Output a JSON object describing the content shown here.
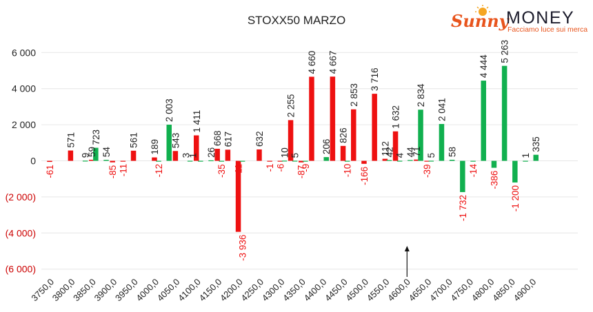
{
  "chart_data": {
    "type": "bar",
    "title": "STOXX50 MARZO",
    "categories": [
      "3750,0",
      "3775,0",
      "3800,0",
      "3825,0",
      "3850,0",
      "3875,0",
      "3900,0",
      "3925,0",
      "3950,0",
      "3975,0",
      "4000,0",
      "4025,0",
      "4050,0",
      "4075,0",
      "4100,0",
      "4125,0",
      "4150,0",
      "4175,0",
      "4200,0",
      "4225,0",
      "4250,0",
      "4275,0",
      "4300,0",
      "4325,0",
      "4350,0",
      "4375,0",
      "4400,0",
      "4425,0",
      "4450,0",
      "4475,0",
      "4500,0",
      "4525,0",
      "4550,0",
      "4575,0",
      "4600,0",
      "4625,0",
      "4650,0",
      "4675,0",
      "4700,0",
      "4725,0",
      "4750,0",
      "4775,0",
      "4800,0",
      "4825,0",
      "4850,0",
      "4875,0",
      "4900,0"
    ],
    "xtick_labels": [
      "3750,0",
      "3800,0",
      "3850,0",
      "3900,0",
      "3950,0",
      "4000,0",
      "4050,0",
      "4100,0",
      "4150,0",
      "4200,0",
      "4250,0",
      "4300,0",
      "4350,0",
      "4400,0",
      "4450,0",
      "4500,0",
      "4550,0",
      "4600,0",
      "4650,0",
      "4700,0",
      "4750,0",
      "4800,0",
      "4850,0",
      "4900,0"
    ],
    "series": [
      {
        "color": "#ee1111",
        "values": [
          -61,
          0,
          571,
          0,
          59,
          0,
          -85,
          -11,
          561,
          0,
          189,
          0,
          543,
          0,
          1411,
          0,
          668,
          617,
          -3936,
          0,
          632,
          -1,
          -6,
          2255,
          -87,
          4660,
          0,
          4667,
          826,
          2853,
          -166,
          3716,
          112,
          1632,
          0,
          71,
          -39,
          0,
          0,
          0,
          0,
          0,
          0,
          0,
          0,
          0,
          0
        ]
      },
      {
        "color": "#11b04f",
        "values": [
          0,
          0,
          0,
          9,
          723,
          54,
          0,
          0,
          0,
          0,
          -12,
          2003,
          0,
          3,
          1,
          26,
          -35,
          0,
          -11,
          0,
          0,
          0,
          10,
          5,
          -9,
          0,
          206,
          0,
          -10,
          0,
          0,
          0,
          42,
          4,
          44,
          2834,
          5,
          2041,
          58,
          -1732,
          -14,
          4444,
          -386,
          5263,
          -1200,
          1,
          335
        ]
      }
    ],
    "labels": [
      {
        "cat": 0,
        "off": -0.2,
        "v": -61,
        "t": "-61"
      },
      {
        "cat": 2,
        "off": -0.2,
        "v": 571,
        "t": "571"
      },
      {
        "cat": 3,
        "off": 0.2,
        "v": 9,
        "t": "9"
      },
      {
        "cat": 4,
        "off": -0.2,
        "v": 59,
        "t": "59"
      },
      {
        "cat": 4,
        "off": 0.2,
        "v": 723,
        "t": "723"
      },
      {
        "cat": 5,
        "off": 0.2,
        "v": 54,
        "t": "54"
      },
      {
        "cat": 6,
        "off": -0.2,
        "v": -85,
        "t": "-85"
      },
      {
        "cat": 7,
        "off": -0.2,
        "v": -11,
        "t": "-11"
      },
      {
        "cat": 8,
        "off": -0.2,
        "v": 561,
        "t": "561"
      },
      {
        "cat": 10,
        "off": -0.2,
        "v": 189,
        "t": "189"
      },
      {
        "cat": 10,
        "off": 0.2,
        "v": -12,
        "t": "-12"
      },
      {
        "cat": 11,
        "off": 0.2,
        "v": 2003,
        "t": "2 003"
      },
      {
        "cat": 12,
        "off": -0.2,
        "v": 543,
        "t": "543"
      },
      {
        "cat": 13,
        "off": -0.2,
        "v": 3,
        "t": "3"
      },
      {
        "cat": 14,
        "off": -0.2,
        "v": 1411,
        "t": "1 411"
      },
      {
        "cat": 14,
        "off": -0.55,
        "v": 1,
        "t": "1"
      },
      {
        "cat": 15,
        "off": 0.2,
        "v": 26,
        "t": "26"
      },
      {
        "cat": 16,
        "off": -0.2,
        "v": 668,
        "t": "668"
      },
      {
        "cat": 16,
        "off": 0.2,
        "v": -35,
        "t": "-35"
      },
      {
        "cat": 17,
        "off": -0.2,
        "v": 617,
        "t": "617"
      },
      {
        "cat": 18,
        "off": -0.2,
        "v": -11,
        "t": "-11"
      },
      {
        "cat": 18,
        "off": 0.2,
        "v": -3936,
        "t": "-3 936"
      },
      {
        "cat": 20,
        "off": -0.2,
        "v": 632,
        "t": "632"
      },
      {
        "cat": 21,
        "off": -0.2,
        "v": -1,
        "t": "-1"
      },
      {
        "cat": 22,
        "off": -0.2,
        "v": -6,
        "t": "-6"
      },
      {
        "cat": 22,
        "off": 0.2,
        "v": 10,
        "t": "10"
      },
      {
        "cat": 23,
        "off": -0.2,
        "v": 2255,
        "t": "2 255"
      },
      {
        "cat": 23,
        "off": 0.2,
        "v": 5,
        "t": "5"
      },
      {
        "cat": 24,
        "off": -0.2,
        "v": -87,
        "t": "-87"
      },
      {
        "cat": 24,
        "off": 0.2,
        "v": -9,
        "t": "-9"
      },
      {
        "cat": 25,
        "off": -0.2,
        "v": 4660,
        "t": "4 660"
      },
      {
        "cat": 26,
        "off": 0.2,
        "v": 206,
        "t": "206"
      },
      {
        "cat": 27,
        "off": -0.2,
        "v": 4667,
        "t": "4 667"
      },
      {
        "cat": 28,
        "off": -0.2,
        "v": 826,
        "t": "826"
      },
      {
        "cat": 28,
        "off": 0.2,
        "v": -10,
        "t": "-10"
      },
      {
        "cat": 29,
        "off": -0.2,
        "v": 2853,
        "t": "2 853"
      },
      {
        "cat": 30,
        "off": -0.2,
        "v": -166,
        "t": "-166"
      },
      {
        "cat": 31,
        "off": -0.2,
        "v": 3716,
        "t": "3 716"
      },
      {
        "cat": 32,
        "off": 0.2,
        "v": 42,
        "t": "42"
      },
      {
        "cat": 32,
        "off": -0.2,
        "v": 112,
        "t": "112"
      },
      {
        "cat": 33,
        "off": -0.2,
        "v": 1632,
        "t": "1 632"
      },
      {
        "cat": 33,
        "off": 0.2,
        "v": 4,
        "t": "4"
      },
      {
        "cat": 34,
        "off": 0.2,
        "v": 44,
        "t": "44"
      },
      {
        "cat": 35,
        "off": -0.2,
        "v": 71,
        "t": "71"
      },
      {
        "cat": 35,
        "off": 0.2,
        "v": 2834,
        "t": "2 834"
      },
      {
        "cat": 36,
        "off": -0.2,
        "v": -39,
        "t": "-39"
      },
      {
        "cat": 36,
        "off": 0.2,
        "v": 5,
        "t": "5"
      },
      {
        "cat": 37,
        "off": 0.2,
        "v": 2041,
        "t": "2 041"
      },
      {
        "cat": 38,
        "off": 0.2,
        "v": 58,
        "t": "58"
      },
      {
        "cat": 39,
        "off": 0.2,
        "v": -1732,
        "t": "-1 732"
      },
      {
        "cat": 40,
        "off": 0.2,
        "v": -14,
        "t": "-14"
      },
      {
        "cat": 41,
        "off": 0.2,
        "v": 4444,
        "t": "4 444"
      },
      {
        "cat": 42,
        "off": 0.2,
        "v": -386,
        "t": "-386"
      },
      {
        "cat": 43,
        "off": 0.2,
        "v": 5263,
        "t": "5 263"
      },
      {
        "cat": 44,
        "off": 0.2,
        "v": -1200,
        "t": "-1 200"
      },
      {
        "cat": 45,
        "off": 0.2,
        "v": 1,
        "t": "1"
      },
      {
        "cat": 46,
        "off": 0.2,
        "v": 335,
        "t": "335"
      }
    ],
    "yticks": [
      {
        "v": 6000,
        "t": "6 000"
      },
      {
        "v": 4000,
        "t": "4 000"
      },
      {
        "v": 2000,
        "t": "2 000"
      },
      {
        "v": 0,
        "t": "0"
      },
      {
        "v": -2000,
        "t": "(2 000)"
      },
      {
        "v": -4000,
        "t": "(4 000)"
      },
      {
        "v": -6000,
        "t": "(6 000)"
      }
    ],
    "ylim": [
      -6000,
      6000
    ],
    "grid": true,
    "annotation_arrow_category": "4600,0",
    "negative_label_color": "#ee1111",
    "negative_tick_color": "#cc0000"
  },
  "logo": {
    "brand_a": "Sunny",
    "brand_b": "MONEY",
    "tagline": "Facciamo luce sui mercati",
    "brand_a_color": "#e8541c",
    "brand_b_color": "#1a1a2a",
    "sun_color": "#f5a623"
  }
}
